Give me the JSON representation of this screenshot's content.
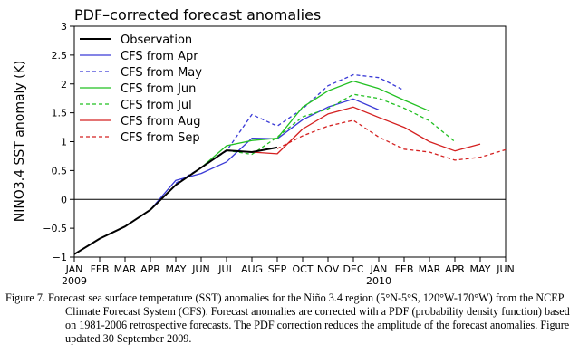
{
  "chart_data": {
    "type": "line",
    "title": "PDF–corrected forecast anomalies",
    "xlabel": "",
    "ylabel": "NINO3.4 SST anomaly (K)",
    "ylim": [
      -1,
      3
    ],
    "yticks": [
      "−1",
      "−0.5",
      "0",
      "0.5",
      "1",
      "1.5",
      "2",
      "2.5",
      "3"
    ],
    "x_tick_labels": [
      "JAN",
      "FEB",
      "MAR",
      "APR",
      "MAY",
      "JUN",
      "JUL",
      "AUG",
      "SEP",
      "OCT",
      "NOV",
      "DEC",
      "JAN",
      "FEB",
      "MAR",
      "APR",
      "MAY",
      "JUN"
    ],
    "year_labels": [
      {
        "index": 0,
        "label": "2009"
      },
      {
        "index": 12,
        "label": "2010"
      }
    ],
    "grid": false,
    "zero_line": true,
    "legend_position": "top-left",
    "series": [
      {
        "name": "Observation",
        "color": "#000000",
        "dash": false,
        "width": 2,
        "start": 0,
        "values": [
          -0.95,
          -0.68,
          -0.47,
          -0.18,
          0.25,
          0.55,
          0.85,
          0.82,
          0.9
        ]
      },
      {
        "name": "CFS from Apr",
        "color": "#3a3ad6",
        "dash": false,
        "width": 1.3,
        "start": 3,
        "values": [
          -0.18,
          0.33,
          0.45,
          0.65,
          1.06,
          1.05,
          1.38,
          1.6,
          1.74,
          1.55
        ]
      },
      {
        "name": "CFS from May",
        "color": "#3a3ad6",
        "dash": true,
        "width": 1.3,
        "start": 4,
        "values": [
          0.28,
          0.55,
          0.84,
          1.47,
          1.27,
          1.57,
          1.97,
          2.16,
          2.11,
          1.89
        ]
      },
      {
        "name": "CFS from Jun",
        "color": "#22c022",
        "dash": false,
        "width": 1.3,
        "start": 5,
        "values": [
          0.55,
          0.93,
          1.02,
          1.06,
          1.6,
          1.88,
          2.05,
          1.92,
          1.72,
          1.53
        ]
      },
      {
        "name": "CFS from Jul",
        "color": "#22c022",
        "dash": true,
        "width": 1.3,
        "start": 6,
        "values": [
          0.85,
          0.78,
          1.08,
          1.43,
          1.57,
          1.82,
          1.75,
          1.58,
          1.36,
          1.0
        ]
      },
      {
        "name": "CFS from Aug",
        "color": "#d42020",
        "dash": false,
        "width": 1.3,
        "start": 7,
        "values": [
          0.82,
          0.79,
          1.22,
          1.48,
          1.6,
          1.42,
          1.25,
          1.0,
          0.84,
          0.96
        ]
      },
      {
        "name": "CFS from Sep",
        "color": "#d42020",
        "dash": true,
        "width": 1.3,
        "start": 8,
        "values": [
          0.88,
          1.1,
          1.27,
          1.37,
          1.08,
          0.87,
          0.82,
          0.68,
          0.73,
          0.86
        ]
      }
    ]
  },
  "caption": {
    "text": "Figure 7. Forecast sea surface temperature (SST) anomalies for the Niño 3.4 region (5°N-5°S, 120°W-170°W) from the NCEP Climate Forecast System (CFS).  Forecast anomalies are corrected with a PDF (probability density function) based on 1981-2006 retrospective forecasts.  The PDF correction reduces the amplitude of the forecast anomalies. Figure updated 30 September 2009."
  }
}
